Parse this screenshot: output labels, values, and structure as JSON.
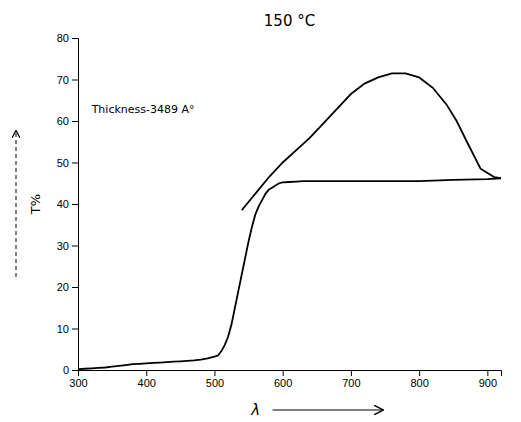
{
  "chart_data": {
    "type": "line",
    "title": "150 °C",
    "xlabel": "λ",
    "ylabel": "T%",
    "annotations": [
      {
        "text": "Thickness-3489 A°",
        "x": 320,
        "y": 62
      }
    ],
    "xlim": [
      300,
      920
    ],
    "ylim": [
      0,
      80
    ],
    "xticks": [
      300,
      400,
      500,
      600,
      700,
      800,
      900
    ],
    "yticks": [
      0,
      10,
      20,
      30,
      40,
      50,
      60,
      70,
      80
    ],
    "series": [
      {
        "color": "#000000",
        "x": [
          300,
          310,
          320,
          330,
          340,
          350,
          360,
          370,
          380,
          390,
          400,
          410,
          420,
          430,
          440,
          450,
          460,
          470,
          480,
          490,
          500,
          505,
          510,
          515,
          520,
          525,
          530,
          535,
          540,
          545,
          550,
          555,
          560,
          565,
          570,
          575,
          580,
          585,
          590,
          595,
          600,
          610,
          620,
          630,
          640,
          650,
          660,
          670,
          680,
          690,
          700,
          750,
          800,
          850,
          900,
          920
        ],
        "values": [
          0.2,
          0.3,
          0.4,
          0.5,
          0.6,
          0.8,
          1.0,
          1.2,
          1.4,
          1.5,
          1.6,
          1.7,
          1.8,
          1.9,
          2.0,
          2.1,
          2.2,
          2.3,
          2.5,
          2.8,
          3.2,
          3.5,
          4.5,
          6.0,
          8.0,
          11.0,
          15.0,
          19.0,
          23.0,
          27.0,
          31.0,
          34.5,
          37.5,
          39.5,
          41.0,
          42.5,
          43.5,
          44.0,
          44.5,
          45.0,
          45.2,
          45.3,
          45.4,
          45.5,
          45.5,
          45.5,
          45.5,
          45.5,
          45.5,
          45.5,
          45.5,
          45.5,
          45.5,
          45.8,
          46.0,
          46.2
        ]
      },
      {
        "color": "#000000",
        "x": [
          540,
          560,
          580,
          600,
          620,
          640,
          660,
          680,
          700,
          720,
          740,
          760,
          780,
          800,
          820,
          840,
          855,
          870,
          890,
          910,
          920
        ],
        "values": [
          38.5,
          42.5,
          46.5,
          50.0,
          53.0,
          56.0,
          59.5,
          63.0,
          66.5,
          69.0,
          70.5,
          71.5,
          71.5,
          70.5,
          68.0,
          64.0,
          60.0,
          55.0,
          48.5,
          46.5,
          46.2
        ]
      }
    ]
  }
}
